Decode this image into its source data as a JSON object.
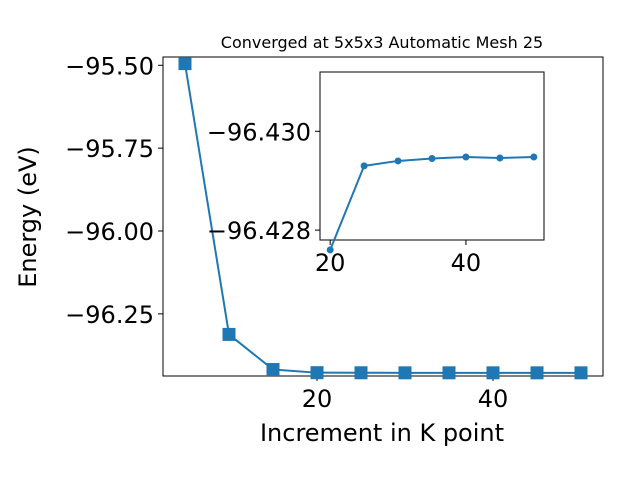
{
  "chart_data": [
    {
      "type": "line",
      "title": "Converged at 5x5x3 Automatic Mesh 25",
      "xlabel": "Increment in K point",
      "ylabel": "Energy (eV)",
      "marker": "square",
      "color": "#1f77b4",
      "grid": false,
      "xlim": [
        2.5,
        52.5
      ],
      "ylim": [
        -96.4375,
        -95.475
      ],
      "xticks": [
        20,
        40
      ],
      "xtick_labels": [
        "20",
        "40"
      ],
      "yticks": [
        -95.5,
        -95.75,
        -96.0,
        -96.25
      ],
      "ytick_labels": [
        "−95.50",
        "−95.75",
        "−96.00",
        "−96.25"
      ],
      "series": [
        {
          "x": [
            5,
            10,
            15,
            20,
            25,
            30,
            35,
            40,
            45,
            50
          ],
          "y": [
            -95.495,
            -96.312,
            -96.418,
            -96.4275,
            -96.4278,
            -96.4279,
            -96.4279,
            -96.4279,
            -96.4279,
            -96.4279
          ]
        }
      ]
    },
    {
      "type": "line",
      "title": "",
      "xlabel": "",
      "ylabel": "",
      "marker": "circle",
      "color": "#1f77b4",
      "grid": false,
      "xlim": [
        18.5,
        51.5
      ],
      "ylim": [
        -96.4278,
        -96.4312
      ],
      "xticks": [
        20,
        40
      ],
      "xtick_labels": [
        "20",
        "40"
      ],
      "yticks": [
        -96.43,
        -96.428
      ],
      "ytick_labels": [
        "−96.430",
        "−96.428"
      ],
      "series": [
        {
          "x": [
            20,
            25,
            30,
            35,
            40,
            45,
            50
          ],
          "y": [
            -96.4276,
            -96.4293,
            -96.4294,
            -96.42945,
            -96.42948,
            -96.42946,
            -96.42948
          ]
        }
      ]
    }
  ]
}
